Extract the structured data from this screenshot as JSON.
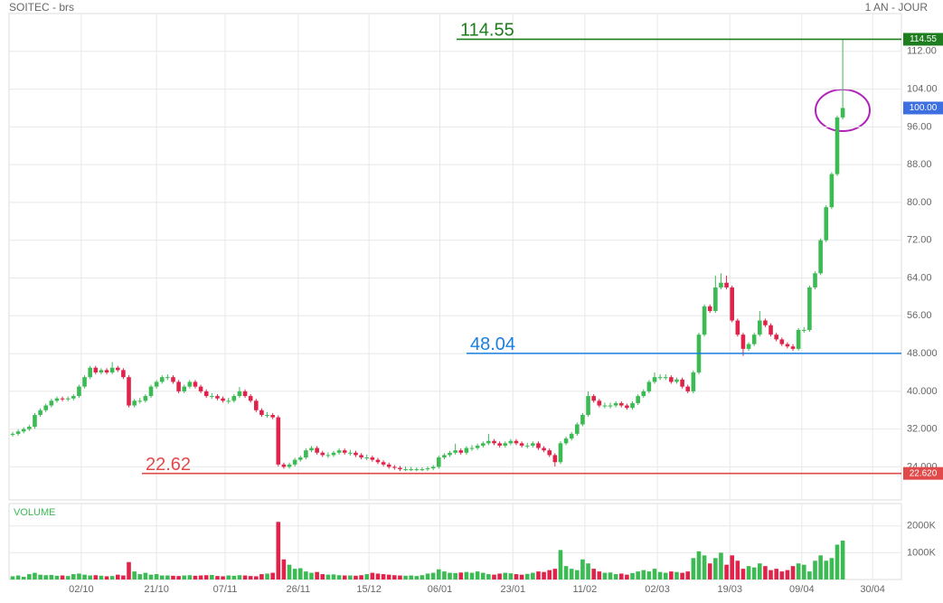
{
  "chart_data": {
    "type": "candlestick",
    "title": "SOITEC - brs",
    "subtitle": "1 AN - JOUR",
    "volume_label": "VOLUME",
    "up_color": "#3cba54",
    "down_color": "#e0234a",
    "grid": true,
    "xlim": [
      -0.65,
      160.6
    ],
    "xticks": [
      {
        "value": 12.4,
        "label": "02/10"
      },
      {
        "value": 26.0,
        "label": "21/10"
      },
      {
        "value": 38.4,
        "label": "07/11"
      },
      {
        "value": 51.6,
        "label": "26/11"
      },
      {
        "value": 64.4,
        "label": "15/12"
      },
      {
        "value": 77.2,
        "label": "06/01"
      },
      {
        "value": 90.4,
        "label": "23/01"
      },
      {
        "value": 103.4,
        "label": "11/02"
      },
      {
        "value": 116.5,
        "label": "02/03"
      },
      {
        "value": 129.6,
        "label": "19/03"
      },
      {
        "value": 142.6,
        "label": "09/04"
      },
      {
        "value": 155.4,
        "label": "30/04"
      }
    ],
    "ylim": [
      17,
      120
    ],
    "yticks": [
      {
        "value": 24,
        "label": "24.000"
      },
      {
        "value": 32,
        "label": "32.000"
      },
      {
        "value": 40,
        "label": "40.000"
      },
      {
        "value": 48,
        "label": "48.000"
      },
      {
        "value": 56,
        "label": "56.00"
      },
      {
        "value": 64,
        "label": "64.00"
      },
      {
        "value": 72,
        "label": "72.00"
      },
      {
        "value": 80,
        "label": "80.00"
      },
      {
        "value": 88,
        "label": "88.00"
      },
      {
        "value": 96,
        "label": "96.00"
      },
      {
        "value": 104,
        "label": "104.00"
      },
      {
        "value": 112,
        "label": "112.00"
      }
    ],
    "vlim": [
      0,
      2800
    ],
    "vticks": [
      {
        "value": 1000,
        "label": "1000K"
      },
      {
        "value": 2000,
        "label": "2000K"
      }
    ],
    "levels": [
      {
        "value": 114.55,
        "label": "114.55",
        "badge": "114.55",
        "color": "#1e7d1e"
      },
      {
        "value": 48.04,
        "label": "48.04",
        "badge": null,
        "color": "#1a7fe0"
      },
      {
        "value": 22.62,
        "label": "22.62",
        "badge": "22.620",
        "color": "#e04a4a"
      }
    ],
    "last_price": {
      "value": 100,
      "badge": "100.00",
      "color": "#3d6fe0"
    },
    "candles": [
      [
        30.8,
        31.4,
        30.4,
        31
      ],
      [
        31,
        31.9,
        30.6,
        31.5
      ],
      [
        31.5,
        32.4,
        31.1,
        32
      ],
      [
        32,
        32.9,
        31.6,
        32.5
      ],
      [
        32.5,
        35.4,
        32.1,
        35
      ],
      [
        35,
        36.4,
        34.6,
        36
      ],
      [
        36,
        37.4,
        35.6,
        37
      ],
      [
        37,
        38.4,
        36.6,
        38
      ],
      [
        38,
        38.9,
        37.6,
        38.5
      ],
      [
        38.5,
        38.9,
        37.9,
        38.3
      ],
      [
        38.3,
        38.9,
        37.9,
        38.5
      ],
      [
        38.5,
        39.4,
        38.1,
        39
      ],
      [
        39,
        41.4,
        38.6,
        41
      ],
      [
        41,
        43.4,
        40.6,
        43
      ],
      [
        43,
        45.4,
        42.6,
        45
      ],
      [
        45,
        45.4,
        43.6,
        44
      ],
      [
        44,
        44.9,
        43.6,
        44.5
      ],
      [
        44.5,
        44.9,
        43.6,
        44
      ],
      [
        44,
        46.2,
        43.6,
        45
      ],
      [
        45,
        45.4,
        44.1,
        44.5
      ],
      [
        44.5,
        44.9,
        42.6,
        43
      ],
      [
        43,
        43.4,
        36.6,
        37
      ],
      [
        37,
        38.4,
        36.6,
        38
      ],
      [
        38,
        38.6,
        37.4,
        38
      ],
      [
        38,
        39.4,
        37.6,
        39
      ],
      [
        39,
        41.4,
        38.6,
        41
      ],
      [
        41,
        42.4,
        40.6,
        42
      ],
      [
        42,
        43.4,
        41.6,
        43
      ],
      [
        43,
        43.6,
        42.4,
        43
      ],
      [
        43,
        43.4,
        41.6,
        42
      ],
      [
        42,
        42.4,
        39.6,
        40
      ],
      [
        40,
        41.4,
        39.6,
        41
      ],
      [
        41,
        42.4,
        40.6,
        42
      ],
      [
        42,
        42.4,
        40.6,
        41
      ],
      [
        41,
        41.4,
        39.6,
        40
      ],
      [
        40,
        40.4,
        38.6,
        39
      ],
      [
        39,
        39.6,
        38.4,
        39
      ],
      [
        39,
        39.4,
        38.1,
        38.5
      ],
      [
        38.5,
        38.9,
        37.6,
        38
      ],
      [
        38,
        38.6,
        37.4,
        38
      ],
      [
        38,
        39.4,
        37.6,
        39
      ],
      [
        39,
        40.9,
        38.6,
        40
      ],
      [
        40,
        40.4,
        38.6,
        39
      ],
      [
        39,
        39.4,
        37.6,
        38
      ],
      [
        38,
        38.4,
        35.6,
        36
      ],
      [
        36,
        36.4,
        34.6,
        35
      ],
      [
        35,
        35.6,
        34.4,
        35
      ],
      [
        35,
        35.4,
        34.1,
        34.5
      ],
      [
        34.5,
        34.9,
        24.1,
        24.5
      ],
      [
        24.5,
        24.9,
        23.6,
        24
      ],
      [
        24,
        24.9,
        23.6,
        24.5
      ],
      [
        24.5,
        25.9,
        24.1,
        25.5
      ],
      [
        25.5,
        26.4,
        25.1,
        26
      ],
      [
        26,
        27.9,
        25.6,
        27.5
      ],
      [
        27.5,
        28.4,
        27.1,
        28
      ],
      [
        28,
        28.4,
        26.6,
        27
      ],
      [
        27,
        27.4,
        26.1,
        26.5
      ],
      [
        26.5,
        27.1,
        25.9,
        26.5
      ],
      [
        26.5,
        27.4,
        26.1,
        27
      ],
      [
        27,
        27.9,
        26.6,
        27.5
      ],
      [
        27.5,
        27.9,
        26.6,
        27
      ],
      [
        27,
        27.6,
        26.4,
        27
      ],
      [
        27,
        27.4,
        26.1,
        26.5
      ],
      [
        26.5,
        26.9,
        25.6,
        26
      ],
      [
        26,
        26.6,
        25.4,
        26
      ],
      [
        26,
        26.4,
        25.1,
        25.5
      ],
      [
        25.5,
        25.9,
        24.6,
        25
      ],
      [
        25,
        25.4,
        24.1,
        24.5
      ],
      [
        24.5,
        24.9,
        23.6,
        24
      ],
      [
        24,
        24.4,
        23.4,
        23.8
      ],
      [
        23.8,
        24.2,
        23.1,
        23.5
      ],
      [
        23.5,
        24.1,
        23.1,
        23.5
      ],
      [
        23.5,
        24,
        23.1,
        23.5
      ],
      [
        23.5,
        23.9,
        23.1,
        23.5
      ],
      [
        23.5,
        23.9,
        23.1,
        23.5
      ],
      [
        23.5,
        24.1,
        23.1,
        23.7
      ],
      [
        23.7,
        24.4,
        23.3,
        24
      ],
      [
        24,
        26.4,
        23.6,
        26
      ],
      [
        26,
        26.9,
        25.6,
        26.5
      ],
      [
        26.5,
        27.4,
        26.1,
        27
      ],
      [
        27,
        28.9,
        26.6,
        27.5
      ],
      [
        27.5,
        27.9,
        26.6,
        27
      ],
      [
        27,
        28.4,
        26.6,
        28
      ],
      [
        28,
        28.6,
        27.4,
        28
      ],
      [
        28,
        28.9,
        27.6,
        28.5
      ],
      [
        28.5,
        29.4,
        28.1,
        29
      ],
      [
        29,
        31,
        28.6,
        29.5
      ],
      [
        29.5,
        29.9,
        28.6,
        29
      ],
      [
        29,
        29.4,
        28.1,
        28.5
      ],
      [
        28.5,
        29.4,
        28.1,
        29
      ],
      [
        29,
        29.9,
        28.6,
        29.5
      ],
      [
        29.5,
        29.9,
        28.6,
        29
      ],
      [
        29,
        29.4,
        28.1,
        28.5
      ],
      [
        28.5,
        29.1,
        27.9,
        28.5
      ],
      [
        28.5,
        29.4,
        28.1,
        29
      ],
      [
        29,
        29.4,
        27.6,
        28
      ],
      [
        28,
        28.4,
        27.1,
        27.5
      ],
      [
        27.5,
        27.9,
        26.1,
        26.5
      ],
      [
        26.5,
        26.9,
        24.1,
        25
      ],
      [
        25,
        29.4,
        24.6,
        29
      ],
      [
        29,
        30.4,
        28.6,
        30
      ],
      [
        30,
        31.4,
        29.6,
        31
      ],
      [
        31,
        33.4,
        30.6,
        33
      ],
      [
        33,
        35.4,
        32.6,
        35
      ],
      [
        35,
        40,
        34.6,
        39
      ],
      [
        39,
        39.4,
        37.6,
        38
      ],
      [
        38,
        38.4,
        36.6,
        37
      ],
      [
        37,
        37.6,
        36.4,
        37
      ],
      [
        37,
        37.6,
        36.4,
        37
      ],
      [
        37,
        37.9,
        36.6,
        37.5
      ],
      [
        37.5,
        37.9,
        36.6,
        37
      ],
      [
        37,
        37.4,
        36.1,
        36.5
      ],
      [
        36.5,
        37.9,
        36.1,
        37.5
      ],
      [
        37.5,
        39.4,
        37.1,
        39
      ],
      [
        39,
        40.4,
        38.6,
        40
      ],
      [
        40,
        42.4,
        39.6,
        42
      ],
      [
        42,
        44,
        41.6,
        43
      ],
      [
        43,
        43.6,
        42.4,
        43
      ],
      [
        43,
        43.6,
        42.4,
        43
      ],
      [
        43,
        43.4,
        41.6,
        42
      ],
      [
        42,
        42.9,
        41.6,
        42.5
      ],
      [
        42.5,
        42.9,
        40.6,
        41
      ],
      [
        41,
        41.4,
        39.6,
        40
      ],
      [
        40,
        44.4,
        39.6,
        44
      ],
      [
        44,
        52.4,
        43.6,
        52
      ],
      [
        52,
        58.4,
        51.6,
        58
      ],
      [
        58,
        58.4,
        56.6,
        57
      ],
      [
        57,
        64.5,
        56.6,
        62
      ],
      [
        62,
        65,
        61.6,
        63
      ],
      [
        63,
        64.5,
        61.6,
        62
      ],
      [
        62,
        62.4,
        54.6,
        55
      ],
      [
        55,
        55.4,
        51.6,
        52
      ],
      [
        52,
        52.4,
        47.5,
        49
      ],
      [
        49,
        50.4,
        48.6,
        50
      ],
      [
        50,
        52.4,
        49.6,
        52
      ],
      [
        52,
        57,
        51.6,
        55
      ],
      [
        55,
        55.4,
        53.6,
        54
      ],
      [
        54,
        54.4,
        51.6,
        52
      ],
      [
        52,
        52.4,
        50.6,
        51
      ],
      [
        51,
        51.4,
        49.6,
        50
      ],
      [
        50,
        50.4,
        49.1,
        49.5
      ],
      [
        49.5,
        50,
        48.6,
        49
      ],
      [
        49,
        53.4,
        48.6,
        53
      ],
      [
        53,
        53.6,
        52.4,
        53
      ],
      [
        53,
        62.4,
        52.6,
        62
      ],
      [
        62,
        65.4,
        61.6,
        65
      ],
      [
        65,
        72.4,
        64.6,
        72
      ],
      [
        72,
        79.4,
        71.6,
        79
      ],
      [
        79,
        86.4,
        78.6,
        86
      ],
      [
        86,
        98.4,
        85.6,
        98
      ],
      [
        98,
        114.55,
        97.6,
        100
      ]
    ],
    "volumes": [
      120,
      150,
      100,
      200,
      250,
      180,
      160,
      170,
      140,
      150,
      130,
      200,
      220,
      180,
      150,
      160,
      140,
      120,
      130,
      180,
      150,
      650,
      300,
      200,
      250,
      180,
      200,
      150,
      150,
      140,
      130,
      150,
      160,
      140,
      150,
      160,
      170,
      130,
      120,
      150,
      140,
      160,
      150,
      130,
      120,
      200,
      220,
      250,
      2150,
      750,
      550,
      400,
      420,
      300,
      250,
      280,
      200,
      180,
      190,
      160,
      150,
      150,
      140,
      160,
      200,
      250,
      220,
      200,
      180,
      160,
      150,
      140,
      150,
      130,
      160,
      220,
      250,
      380,
      300,
      250,
      240,
      260,
      280,
      250,
      300,
      250,
      200,
      180,
      220,
      250,
      230,
      200,
      180,
      210,
      250,
      300,
      280,
      350,
      400,
      1100,
      500,
      400,
      350,
      750,
      600,
      400,
      300,
      250,
      260,
      200,
      220,
      180,
      240,
      300,
      350,
      300,
      400,
      280,
      250,
      300,
      280,
      250,
      300,
      800,
      1050,
      900,
      600,
      800,
      1000,
      550,
      900,
      700,
      400,
      500,
      450,
      600,
      500,
      350,
      400,
      300,
      350,
      500,
      600,
      550,
      300,
      700,
      900,
      700,
      800,
      1300,
      1450
    ]
  }
}
